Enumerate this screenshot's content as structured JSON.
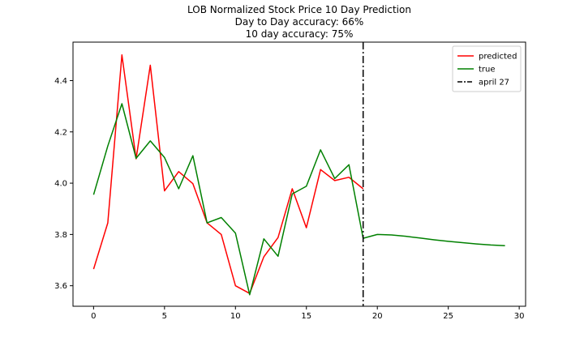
{
  "chart_data": {
    "type": "line",
    "title_lines": [
      "LOB Normalized Stock Price 10 Day Prediction",
      "Day to Day accuracy: 66%",
      "10 day accuracy: 75%"
    ],
    "xlabel": "",
    "ylabel": "",
    "xlim": [
      -1.45,
      30.45
    ],
    "ylim": [
      3.52,
      4.55
    ],
    "x_ticks": [
      0,
      5,
      10,
      15,
      20,
      25,
      30
    ],
    "x_tick_labels": [
      "0",
      "5",
      "10",
      "15",
      "20",
      "25",
      "30"
    ],
    "y_ticks": [
      3.6,
      3.8,
      4.0,
      4.2,
      4.4
    ],
    "y_tick_labels": [
      "3.6",
      "3.8",
      "4.0",
      "4.2",
      "4.4"
    ],
    "grid": false,
    "legend_position": "top-right",
    "series": [
      {
        "name": "predicted",
        "color": "#ff0000",
        "style": "solid",
        "x": [
          0,
          1,
          2,
          3,
          4,
          5,
          6,
          7,
          8,
          9,
          10,
          11,
          12,
          13,
          14,
          15,
          16,
          17,
          18,
          19
        ],
        "y": [
          3.665,
          3.845,
          4.5,
          4.095,
          4.46,
          3.97,
          4.045,
          3.998,
          3.845,
          3.8,
          3.6,
          3.57,
          3.713,
          3.788,
          3.978,
          3.826,
          4.053,
          4.01,
          4.023,
          3.978
        ]
      },
      {
        "name": "true",
        "color": "#008000",
        "style": "solid",
        "x": [
          0,
          1,
          2,
          3,
          4,
          5,
          6,
          7,
          8,
          9,
          10,
          11,
          12,
          13,
          14,
          15,
          16,
          17,
          18,
          19,
          20,
          21,
          22,
          23,
          24,
          25,
          26,
          27,
          28,
          29
        ],
        "y": [
          3.955,
          4.145,
          4.31,
          4.097,
          4.165,
          4.1,
          3.978,
          4.107,
          3.845,
          3.866,
          3.805,
          3.565,
          3.783,
          3.715,
          3.958,
          3.988,
          4.13,
          4.018,
          4.072,
          3.785,
          3.8,
          3.798,
          3.793,
          3.786,
          3.779,
          3.773,
          3.768,
          3.763,
          3.759,
          3.756
        ]
      },
      {
        "name": "april 27",
        "color": "#000000",
        "style": "dashdot",
        "vertical_x": 19
      }
    ]
  }
}
